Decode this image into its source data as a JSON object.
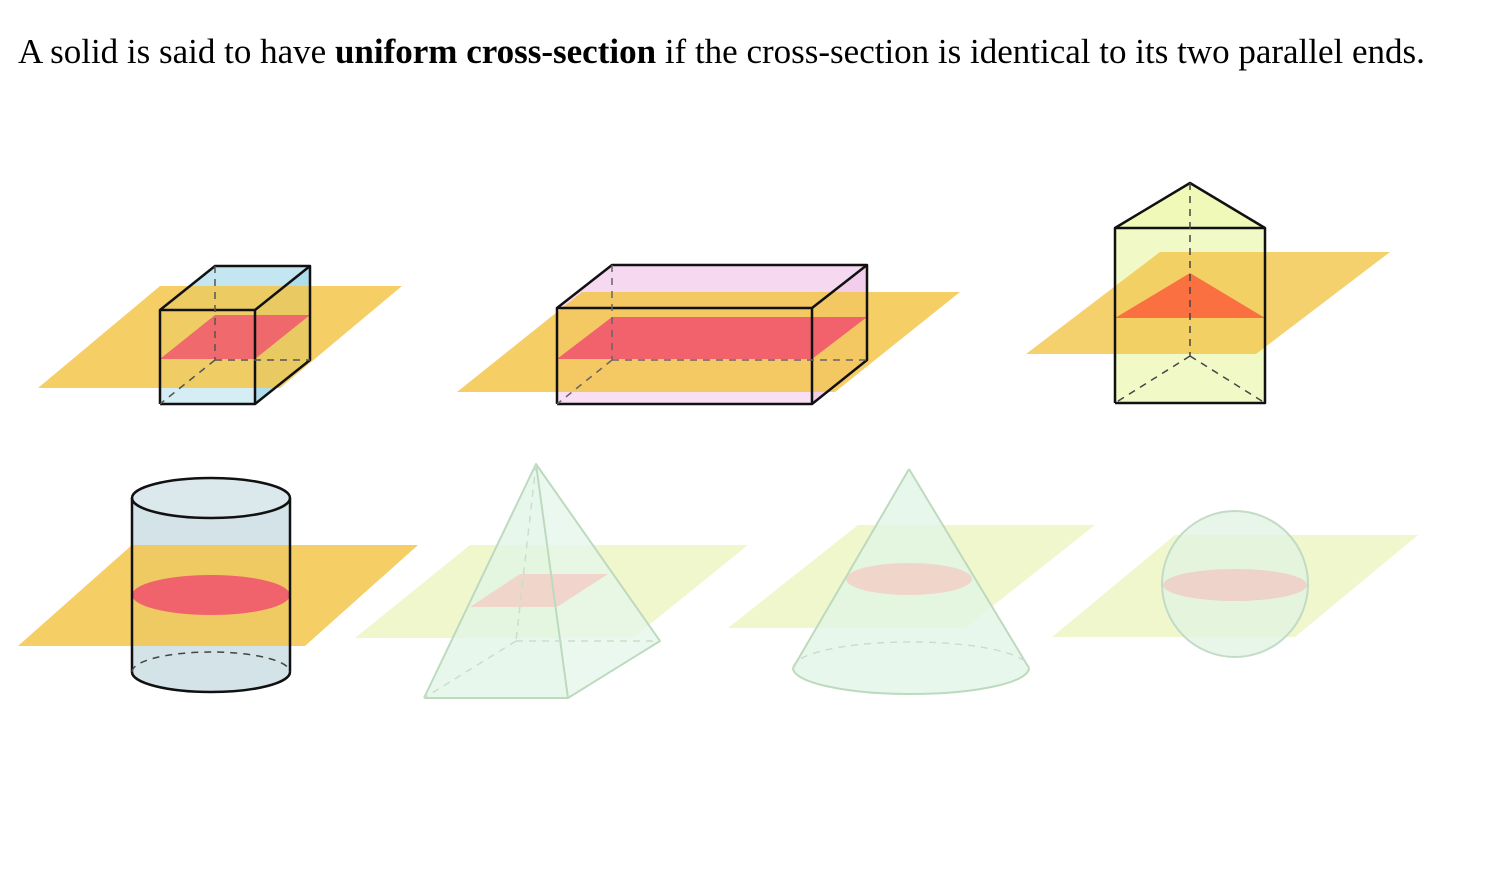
{
  "paragraph": {
    "before": "A solid is said to have ",
    "term": "uniform cross-section",
    "after": " if the cross-section is identical to its two parallel ends."
  },
  "figure": {
    "solids": [
      {
        "name": "cuboid",
        "uniform": true
      },
      {
        "name": "rectangular prism",
        "uniform": true
      },
      {
        "name": "triangular prism",
        "uniform": true
      },
      {
        "name": "cylinder",
        "uniform": true
      },
      {
        "name": "pyramid",
        "uniform": false
      },
      {
        "name": "cone",
        "uniform": false
      },
      {
        "name": "sphere",
        "uniform": false
      }
    ],
    "colors": {
      "plane_uniform": "#f3c64a",
      "section_uniform": "#f0506e",
      "section_triangle": "#fa6a3e",
      "plane_nonuniform": "#ecf5c2",
      "cube_fill": "#a9dcea",
      "box_fill": "#f6d4f0",
      "prism_fill": "#eff8b0",
      "cylinder_fill": "#cfe0e6",
      "ghost_fill": "#dcf4e3"
    }
  }
}
